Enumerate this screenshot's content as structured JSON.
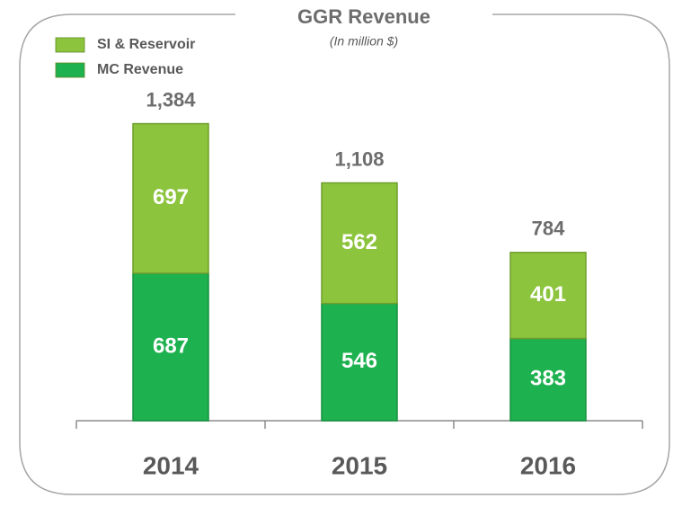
{
  "chart_data": {
    "type": "stacked-bar",
    "title": "GGR Revenue",
    "subtitle": "(In million $)",
    "categories": [
      "2014",
      "2015",
      "2016"
    ],
    "series": [
      {
        "name": "MC Revenue",
        "color": "#1eb14f",
        "values": [
          687,
          546,
          383
        ]
      },
      {
        "name": "SI & Reservoir",
        "color": "#8cc43d",
        "values": [
          697,
          562,
          401
        ]
      }
    ],
    "totals": {
      "values": [
        1384,
        1108,
        784
      ],
      "value_labels": [
        "1,384",
        "1,108",
        "784"
      ]
    },
    "ylim": [
      0,
      1600
    ],
    "legend": "top-left"
  }
}
